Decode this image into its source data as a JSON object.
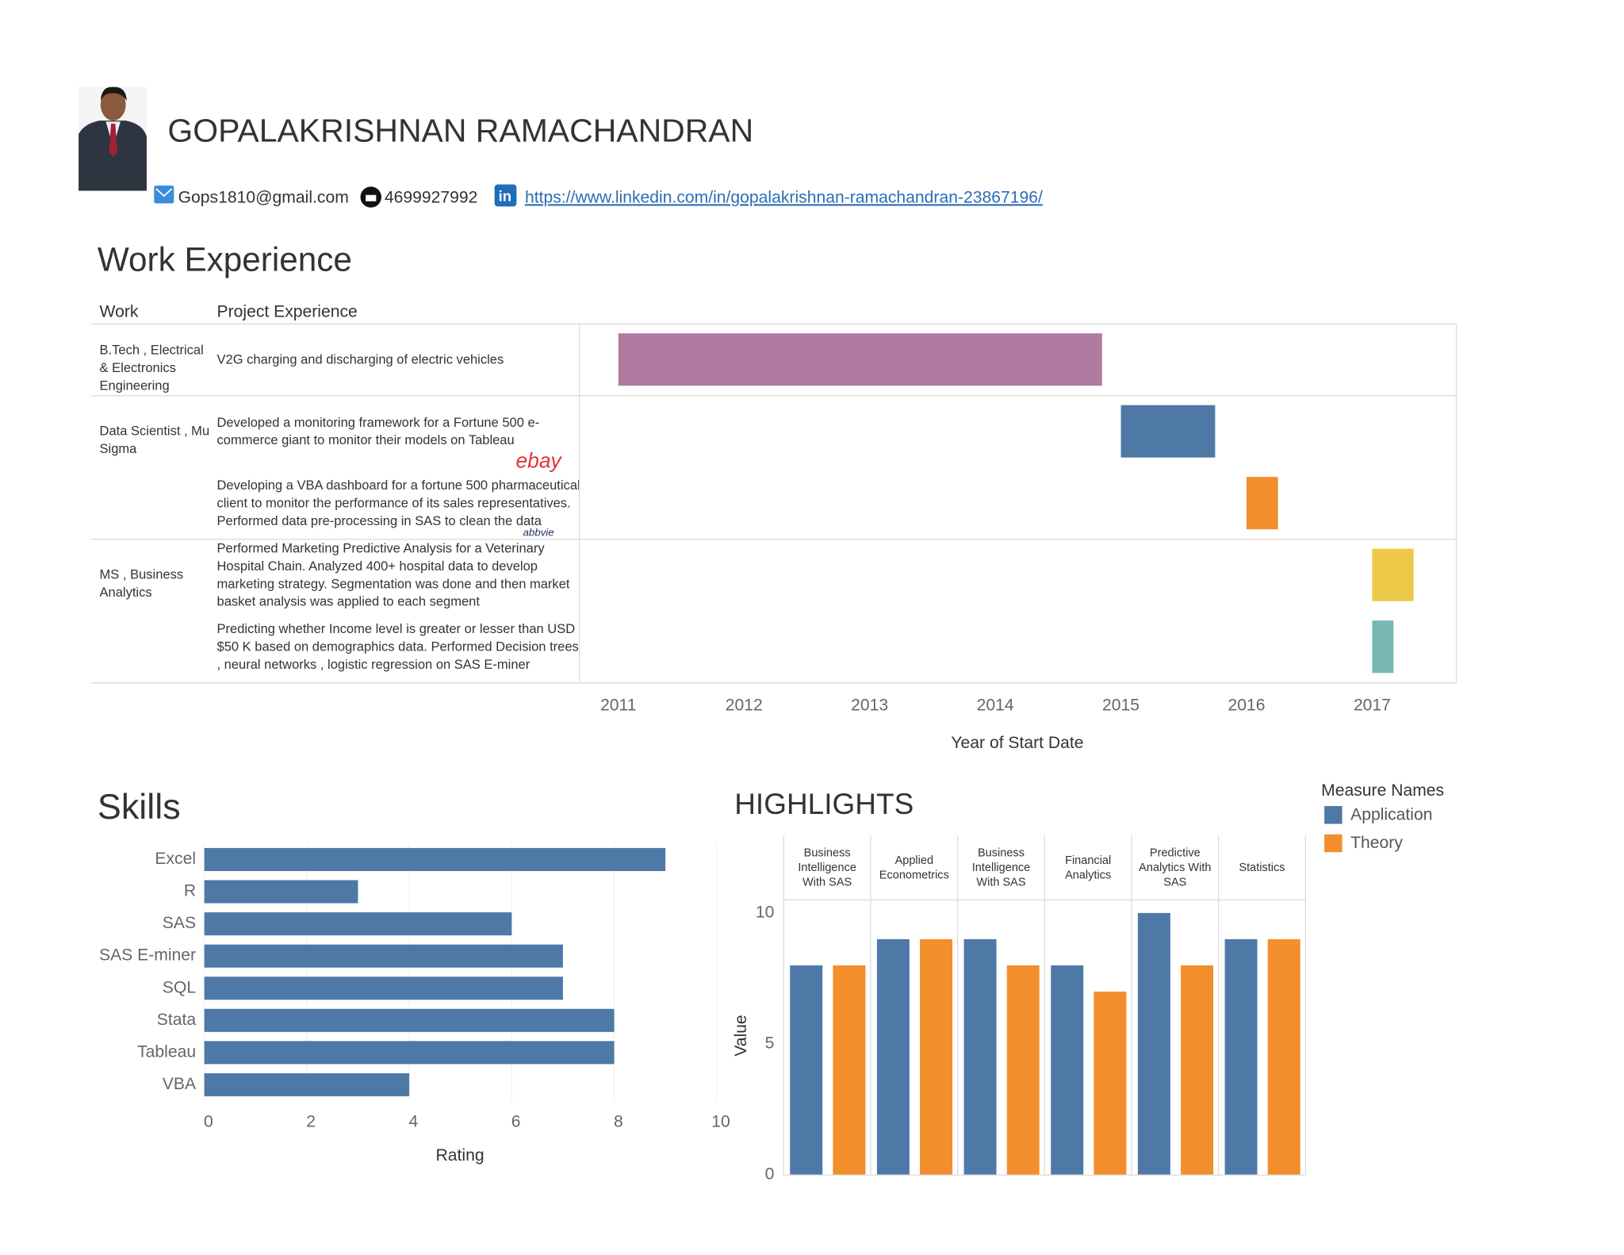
{
  "header": {
    "name": "GOPALAKRISHNAN RAMACHANDRAN",
    "email": "Gops1810@gmail.com",
    "phone": "4699927992",
    "linkedin": "https://www.linkedin.com/in/gopalakrishnan-ramachandran-23867196/"
  },
  "chart_data": [
    {
      "type": "gantt",
      "title": "Work Experience",
      "columns": [
        "Work",
        "Project Experience"
      ],
      "x_label": "Year of Start Date",
      "xlim": [
        2010.69,
        2017.67
      ],
      "xticks": [
        2011,
        2012,
        2013,
        2014,
        2015,
        2016,
        2017
      ],
      "groups": [
        {
          "work": "B.Tech , Electrical & Electronics Engineering",
          "projects": [
            {
              "text": "V2G charging and discharging of electric vehicles",
              "start": 2011,
              "end": 2014.85,
              "color": "#b07aa1"
            }
          ]
        },
        {
          "work": "Data Scientist , Mu Sigma",
          "projects": [
            {
              "text": "Developed a monitoring framework for a Fortune 500 e-commerce giant to monitor their models on Tableau",
              "logo": "ebay",
              "start": 2015,
              "end": 2015.75,
              "color": "#4e79a7"
            },
            {
              "text": "Developing a VBA dashboard for a fortune 500 pharmaceutical client to monitor the performance of its sales representatives. Performed data pre-processing in SAS to clean the data",
              "logo": "abbvie",
              "start": 2016,
              "end": 2016.25,
              "color": "#f28e2b"
            }
          ]
        },
        {
          "work": "MS , Business Analytics",
          "projects": [
            {
              "text": "Performed Marketing Predictive Analysis for a Veterinary Hospital Chain. Analyzed 400+ hospital data to develop marketing strategy. Segmentation was done and then market basket analysis was applied to each segment",
              "start": 2017,
              "end": 2017.33,
              "color": "#edc948"
            },
            {
              "text": "Predicting whether Income level is greater or lesser than USD $50 K based on demographics data. Performed Decision trees , neural networks , logistic regression on SAS E-miner",
              "start": 2017,
              "end": 2017.17,
              "color": "#76b7b2"
            }
          ]
        }
      ]
    },
    {
      "type": "bar",
      "title": "Skills",
      "orientation": "horizontal",
      "categories": [
        "Excel",
        "R",
        "SAS",
        "SAS E-miner",
        "SQL",
        "Stata",
        "Tableau",
        "VBA"
      ],
      "values": [
        9,
        3,
        6,
        7,
        7,
        8,
        8,
        4
      ],
      "color": "#4e79a7",
      "x_label": "Rating",
      "xlim": [
        0,
        10
      ],
      "xticks": [
        0,
        2,
        4,
        6,
        8,
        10
      ],
      "grid": true
    },
    {
      "type": "grouped_bar",
      "title": "HIGHLIGHTS",
      "categories": [
        "Business Intelligence With SAS",
        "Applied Econometrics",
        "Business Intelligence With SAS",
        "Financial Analytics",
        "Predictive Analytics With SAS",
        "Statistics"
      ],
      "series": [
        {
          "name": "Application",
          "color": "#4e79a7",
          "values": [
            8,
            9,
            9,
            8,
            10,
            9
          ]
        },
        {
          "name": "Theory",
          "color": "#f28e2b",
          "values": [
            8,
            9,
            8,
            7,
            8,
            9
          ]
        }
      ],
      "y_label": "Value",
      "ylim": [
        0,
        10.5
      ],
      "yticks": [
        0,
        5,
        10
      ],
      "legend_title": "Measure Names",
      "legend": "right"
    }
  ]
}
